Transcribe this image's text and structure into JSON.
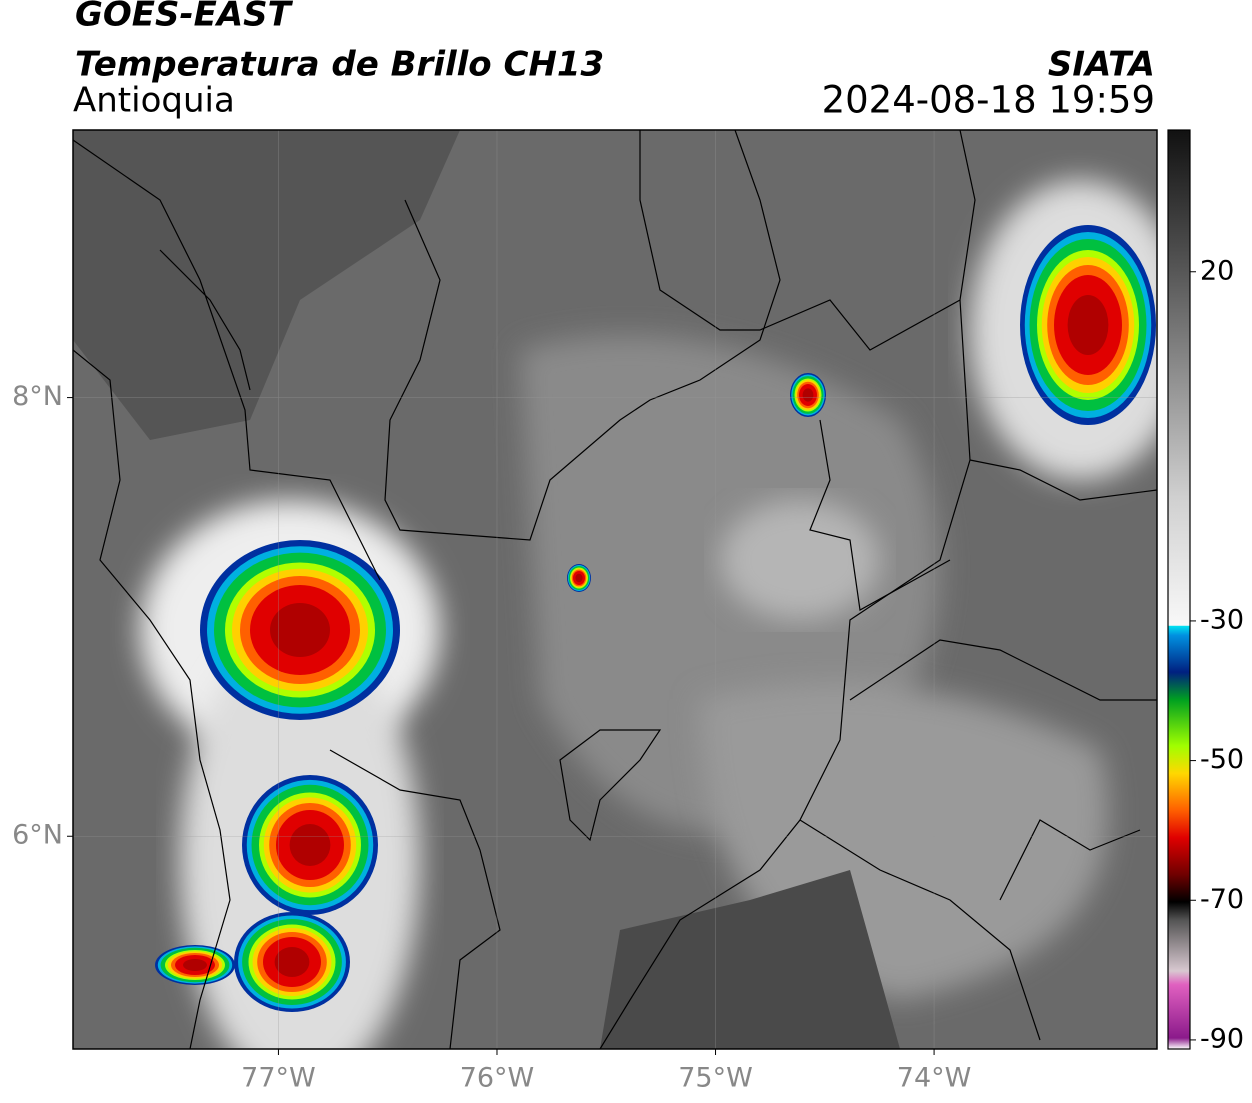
{
  "header": {
    "title": "GOES-EAST",
    "subtitle": "Temperatura de Brillo CH13",
    "region": "Antioquia",
    "source": "SIATA",
    "datetime": "2024-08-18 19:59"
  },
  "map": {
    "lonlim": [
      -77.94,
      -72.98
    ],
    "latlim": [
      5.03,
      9.22
    ],
    "lon_ticks": [
      {
        "value": -77,
        "label": "77°W"
      },
      {
        "value": -76,
        "label": "76°W"
      },
      {
        "value": -75,
        "label": "75°W"
      },
      {
        "value": -74,
        "label": "74°W"
      }
    ],
    "lat_ticks": [
      {
        "value": 8,
        "label": "8°N"
      },
      {
        "value": 6,
        "label": "6°N"
      }
    ]
  },
  "colorbar": {
    "lim": [
      -91.3,
      40.3
    ],
    "ticks": [
      20,
      -30,
      -50,
      -70,
      -90
    ]
  }
}
